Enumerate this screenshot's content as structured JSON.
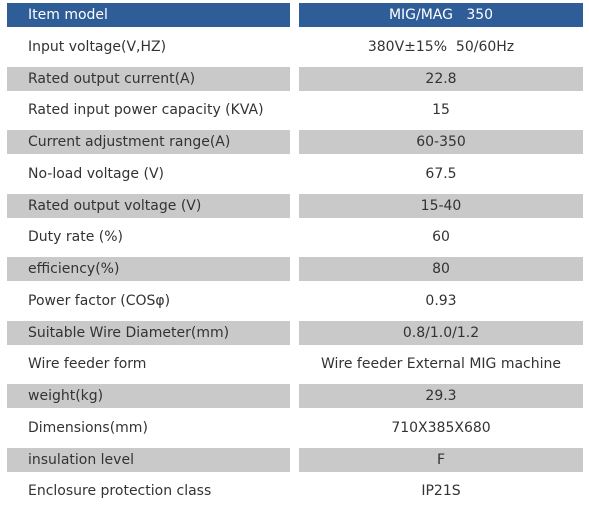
{
  "table": {
    "header": [
      "Item model",
      "MIG/MAG   350"
    ],
    "rows": [
      [
        "Input voltage(V,HZ)",
        "380V±15%  50/60Hz"
      ],
      [
        "Rated output current(A)",
        "22.8"
      ],
      [
        "Rated input power capacity (KVA)",
        "15"
      ],
      [
        "Current adjustment range(A)",
        "60-350"
      ],
      [
        "No-load voltage (V)",
        "67.5"
      ],
      [
        "Rated output voltage (V)",
        "15-40"
      ],
      [
        "Duty rate (%)",
        "60"
      ],
      [
        "efficiency(%)",
        "80"
      ],
      [
        "Power factor (COSφ)",
        "0.93"
      ],
      [
        "Suitable Wire Diameter(mm)",
        "0.8/1.0/1.2"
      ],
      [
        "Wire feeder form",
        "Wire feeder External MIG machine"
      ],
      [
        "weight(kg)",
        "29.3"
      ],
      [
        "Dimensions(mm)",
        "710X385X680"
      ],
      [
        "insulation level",
        "F"
      ],
      [
        "Enclosure protection class",
        "IP21S"
      ]
    ]
  }
}
